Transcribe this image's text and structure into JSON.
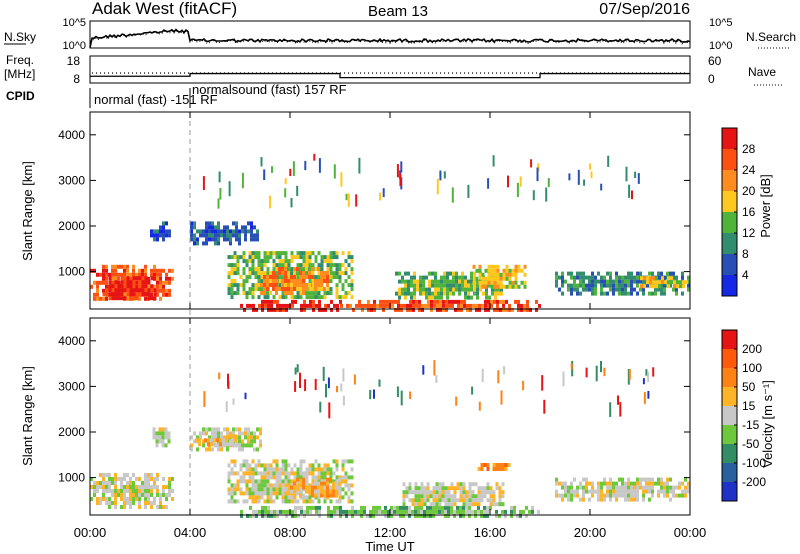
{
  "header": {
    "station": "Adak West (fitACF)",
    "beam": "Beam 13",
    "date": "07/Sep/2016"
  },
  "strip_labels": {
    "nsky": "N.Sky",
    "nsearch": "N.Search",
    "freq": "Freq.",
    "freq_unit": "[MHz]",
    "nave": "Nave",
    "cpid": "CPID",
    "nsky_ticks": [
      "10^5",
      "10^0"
    ],
    "freq_ticks": [
      "18",
      "8"
    ],
    "nave_ticks": [
      "60",
      "0"
    ]
  },
  "cpid_labels": [
    "normal (fast) -151 RF",
    "normalsound (fast) 157 RF"
  ],
  "x_axis": {
    "label": "Time UT",
    "ticks": [
      "00:00",
      "04:00",
      "08:00",
      "12:00",
      "16:00",
      "20:00",
      "00:00"
    ]
  },
  "y_axis": {
    "label": "Slant Range [km]",
    "ticks": [
      "1000",
      "2000",
      "3000",
      "4000"
    ]
  },
  "power_scale": {
    "label": "Power [dB]",
    "ticks": [
      "4",
      "8",
      "12",
      "16",
      "20",
      "24",
      "28"
    ],
    "colors": [
      "#1428e6",
      "#2850b4",
      "#328c6e",
      "#50b43c",
      "#ffc81e",
      "#ff8c1e",
      "#ff5014",
      "#e61414"
    ]
  },
  "velocity_scale": {
    "label": "Velocity [m s⁻¹]",
    "ticks": [
      "200",
      "100",
      "50",
      "15",
      "-15",
      "-50",
      "-100",
      "-200"
    ],
    "colors": [
      "#1e32c8",
      "#2860a0",
      "#328c64",
      "#6ec83c",
      "#c8c8c8",
      "#ffb428",
      "#ff8214",
      "#ff5a0a",
      "#e61414"
    ]
  },
  "chart_data": {
    "type": "heatmap",
    "x_range_hours": [
      0,
      24
    ],
    "y_range_km": [
      180,
      4500
    ],
    "frequency_mhz_segments": [
      {
        "start_h": 0,
        "end_h": 4,
        "value": 10.5
      },
      {
        "start_h": 4,
        "end_h": 10,
        "value": 11.5
      },
      {
        "start_h": 10,
        "end_h": 18,
        "value": 10
      },
      {
        "start_h": 18,
        "end_h": 24,
        "value": 11.5
      }
    ],
    "cpid_transition_hours": [
      4
    ],
    "power_regions": [
      {
        "t0": 0.0,
        "t1": 3.3,
        "r0": 400,
        "r1": 1150,
        "level": 6
      },
      {
        "t0": 0.5,
        "t1": 2.6,
        "r0": 450,
        "r1": 900,
        "level": 7
      },
      {
        "t0": 2.4,
        "t1": 3.2,
        "r0": 1700,
        "r1": 2100,
        "level": 1
      },
      {
        "t0": 4.0,
        "t1": 6.7,
        "r0": 1650,
        "r1": 2100,
        "level": 1
      },
      {
        "t0": 5.5,
        "t1": 10.5,
        "r0": 450,
        "r1": 1450,
        "level": 3
      },
      {
        "t0": 6.8,
        "t1": 9.5,
        "r0": 550,
        "r1": 1100,
        "level": 5
      },
      {
        "t0": 6.0,
        "t1": 10.0,
        "r0": 200,
        "r1": 380,
        "level": 7
      },
      {
        "t0": 10.0,
        "t1": 18.0,
        "r0": 200,
        "r1": 380,
        "level": 6
      },
      {
        "t0": 12.2,
        "t1": 16.5,
        "r0": 400,
        "r1": 1000,
        "level": 3
      },
      {
        "t0": 15.3,
        "t1": 17.4,
        "r0": 700,
        "r1": 1150,
        "level": 4
      },
      {
        "t0": 18.6,
        "t1": 24.0,
        "r0": 550,
        "r1": 1000,
        "level": 2
      },
      {
        "t0": 22.0,
        "t1": 23.9,
        "r0": 650,
        "r1": 900,
        "level": 4
      }
    ],
    "velocity_regions": [
      {
        "t0": 0.0,
        "t1": 3.3,
        "r0": 380,
        "r1": 1100,
        "level": 4
      },
      {
        "t0": 2.5,
        "t1": 3.2,
        "r0": 1700,
        "r1": 2100,
        "level": 4
      },
      {
        "t0": 4.0,
        "t1": 6.8,
        "r0": 1650,
        "r1": 2100,
        "level": 4
      },
      {
        "t0": 4.2,
        "t1": 5.8,
        "r0": 1750,
        "r1": 1950,
        "level": 5
      },
      {
        "t0": 5.5,
        "t1": 10.5,
        "r0": 450,
        "r1": 1400,
        "level": 4
      },
      {
        "t0": 8.0,
        "t1": 10.0,
        "r0": 600,
        "r1": 1000,
        "level": 5
      },
      {
        "t0": 6.0,
        "t1": 18.0,
        "r0": 200,
        "r1": 380,
        "level": 3
      },
      {
        "t0": 12.5,
        "t1": 16.5,
        "r0": 400,
        "r1": 900,
        "level": 4
      },
      {
        "t0": 15.5,
        "t1": 16.8,
        "r0": 1180,
        "r1": 1320,
        "level": 6
      },
      {
        "t0": 18.6,
        "t1": 24.0,
        "r0": 550,
        "r1": 1000,
        "level": 4
      }
    ]
  }
}
